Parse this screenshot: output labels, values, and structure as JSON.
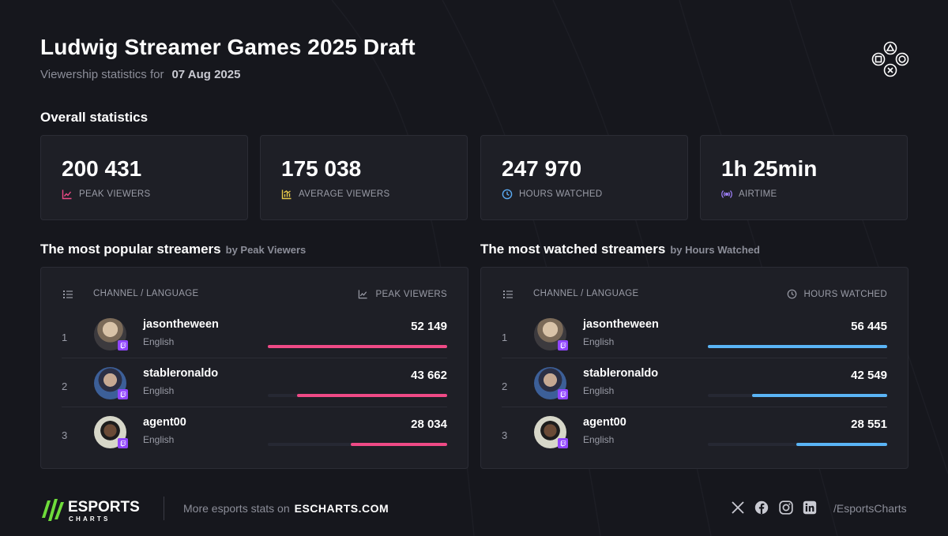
{
  "header": {
    "title": "Ludwig Streamer Games 2025 Draft",
    "subtitle_prefix": "Viewership statistics for",
    "date": "07 Aug 2025"
  },
  "overall": {
    "section_title": "Overall statistics",
    "cards": [
      {
        "value": "200 431",
        "label": "PEAK VIEWERS",
        "icon": "chart-line-icon",
        "icon_color": "#ef4a86"
      },
      {
        "value": "175 038",
        "label": "AVERAGE VIEWERS",
        "icon": "bar-chart-icon",
        "icon_color": "#e7c84a"
      },
      {
        "value": "247 970",
        "label": "HOURS WATCHED",
        "icon": "clock-icon",
        "icon_color": "#5aa9f2"
      },
      {
        "value": "1h 25min",
        "label": "AIRTIME",
        "icon": "broadcast-icon",
        "icon_color": "#9a7cf2"
      }
    ]
  },
  "popular": {
    "title": "The most popular streamers",
    "by": "by Peak Viewers",
    "col_channel": "CHANNEL / LANGUAGE",
    "col_metric": "PEAK VIEWERS",
    "bar_color": "#ef4a86",
    "rows": [
      {
        "rank": "1",
        "name": "jasontheween",
        "lang": "English",
        "value": "52 149",
        "fill": 1.0
      },
      {
        "rank": "2",
        "name": "stableronaldo",
        "lang": "English",
        "value": "43 662",
        "fill": 0.837
      },
      {
        "rank": "3",
        "name": "agent00",
        "lang": "English",
        "value": "28 034",
        "fill": 0.538
      }
    ]
  },
  "watched": {
    "title": "The most watched streamers",
    "by": "by Hours Watched",
    "col_channel": "CHANNEL / LANGUAGE",
    "col_metric": "HOURS WATCHED",
    "bar_color": "#5ab4f5",
    "rows": [
      {
        "rank": "1",
        "name": "jasontheween",
        "lang": "English",
        "value": "56 445",
        "fill": 1.0
      },
      {
        "rank": "2",
        "name": "stableronaldo",
        "lang": "English",
        "value": "42 549",
        "fill": 0.754
      },
      {
        "rank": "3",
        "name": "agent00",
        "lang": "English",
        "value": "28 551",
        "fill": 0.506
      }
    ]
  },
  "footer": {
    "logo_word": "ESPORTS",
    "logo_sub": "CHARTS",
    "more_text": "More esports stats on",
    "site": "ESCHARTS.COM",
    "handle": "/EsportsCharts",
    "logo_color": "#6fdc3b"
  }
}
